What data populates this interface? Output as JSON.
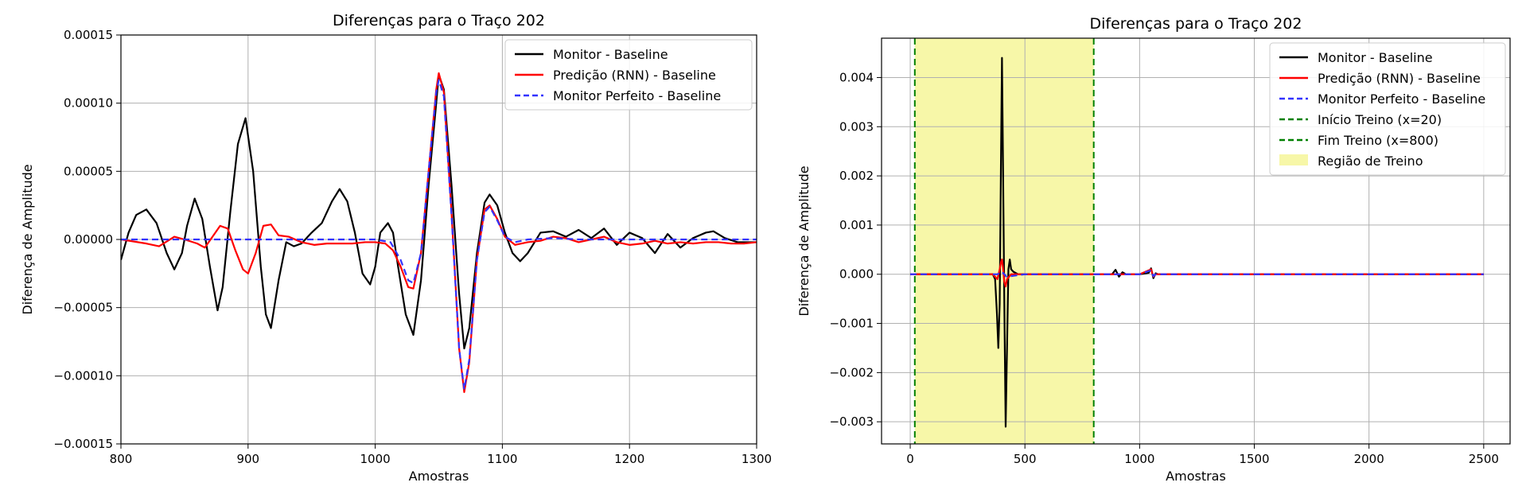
{
  "chart_data": [
    {
      "type": "line",
      "title": "Diferenças para o Traço 202",
      "xlabel": "Amostras",
      "ylabel": "Diferença de Amplitude",
      "xlim": [
        800,
        1300
      ],
      "ylim": [
        -0.00015,
        0.00015
      ],
      "xticks": [
        800,
        900,
        1000,
        1100,
        1200,
        1300
      ],
      "xtick_labels": [
        "800",
        "900",
        "1000",
        "1100",
        "1200",
        "1300"
      ],
      "yticks": [
        0.00015,
        0.0001,
        5e-05,
        0,
        -5e-05,
        -0.0001,
        -0.00015
      ],
      "ytick_labels": [
        "0.00015",
        "0.00010",
        "0.00005",
        "0.00000",
        "−0.00005",
        "−0.00010",
        "−0.00015"
      ],
      "grid": true,
      "legend_position": "top-right",
      "series": [
        {
          "name": "Monitor - Baseline",
          "color": "#000000",
          "style": "solid",
          "x": [
            800,
            806,
            812,
            820,
            828,
            836,
            842,
            848,
            852,
            858,
            864,
            870,
            876,
            880,
            886,
            892,
            898,
            904,
            910,
            914,
            918,
            924,
            930,
            936,
            942,
            950,
            958,
            966,
            972,
            978,
            984,
            990,
            996,
            1000,
            1004,
            1010,
            1014,
            1018,
            1024,
            1030,
            1036,
            1042,
            1048,
            1050,
            1054,
            1060,
            1066,
            1070,
            1074,
            1080,
            1086,
            1090,
            1096,
            1102,
            1108,
            1114,
            1120,
            1130,
            1140,
            1150,
            1160,
            1170,
            1180,
            1190,
            1200,
            1210,
            1220,
            1230,
            1240,
            1250,
            1260,
            1266,
            1275,
            1285,
            1300
          ],
          "y": [
            -1.5e-05,
            5e-06,
            1.8e-05,
            2.2e-05,
            1.2e-05,
            -1e-05,
            -2.2e-05,
            -1e-05,
            1e-05,
            3e-05,
            1.5e-05,
            -2e-05,
            -5.2e-05,
            -3.5e-05,
            2e-05,
            7e-05,
            8.9e-05,
            5e-05,
            -2e-05,
            -5.5e-05,
            -6.5e-05,
            -3e-05,
            -2e-06,
            -5e-06,
            -3e-06,
            5e-06,
            1.2e-05,
            2.8e-05,
            3.7e-05,
            2.8e-05,
            5e-06,
            -2.5e-05,
            -3.3e-05,
            -2e-05,
            5e-06,
            1.2e-05,
            5e-06,
            -2e-05,
            -5.5e-05,
            -7e-05,
            -3e-05,
            4e-05,
            0.0001,
            0.000121,
            0.00011,
            4e-05,
            -4e-05,
            -8e-05,
            -6.5e-05,
            -1e-05,
            2.7e-05,
            3.3e-05,
            2.5e-05,
            5e-06,
            -1e-05,
            -1.6e-05,
            -1e-05,
            5e-06,
            6e-06,
            2e-06,
            7e-06,
            1e-06,
            8e-06,
            -4e-06,
            5e-06,
            1e-06,
            -1e-05,
            4e-06,
            -6e-06,
            1e-06,
            5e-06,
            6e-06,
            1e-06,
            -2e-06,
            -2e-06
          ]
        },
        {
          "name": "Predição (RNN) - Baseline",
          "color": "#ff0000",
          "style": "solid",
          "x": [
            800,
            820,
            830,
            842,
            850,
            860,
            866,
            872,
            878,
            884,
            890,
            896,
            900,
            906,
            912,
            918,
            924,
            932,
            942,
            952,
            962,
            972,
            982,
            992,
            1000,
            1008,
            1014,
            1020,
            1026,
            1030,
            1036,
            1042,
            1048,
            1050,
            1054,
            1060,
            1066,
            1070,
            1074,
            1080,
            1086,
            1090,
            1096,
            1102,
            1110,
            1120,
            1130,
            1140,
            1150,
            1160,
            1170,
            1180,
            1190,
            1200,
            1210,
            1220,
            1230,
            1240,
            1250,
            1260,
            1270,
            1280,
            1290,
            1300
          ],
          "y": [
            0,
            -3e-06,
            -5e-06,
            2e-06,
            0,
            -3e-06,
            -6e-06,
            2e-06,
            1e-05,
            8e-06,
            -8e-06,
            -2.2e-05,
            -2.5e-05,
            -1e-05,
            1e-05,
            1.1e-05,
            3e-06,
            2e-06,
            -2e-06,
            -4e-06,
            -3e-06,
            -3e-06,
            -3e-06,
            -2e-06,
            -2e-06,
            -3e-06,
            -8e-06,
            -2e-05,
            -3.5e-05,
            -3.6e-05,
            -1e-05,
            5e-05,
            0.00011,
            0.000122,
            0.000108,
            2e-05,
            -8e-05,
            -0.000112,
            -9e-05,
            -1.5e-05,
            2.2e-05,
            2.5e-05,
            1.5e-05,
            2e-06,
            -4e-06,
            -2e-06,
            -1e-06,
            2e-06,
            1e-06,
            -2e-06,
            0,
            2e-06,
            -2e-06,
            -4e-06,
            -3e-06,
            -1e-06,
            -3e-06,
            -2e-06,
            -3e-06,
            -2e-06,
            -2e-06,
            -3e-06,
            -3e-06,
            -2e-06
          ]
        },
        {
          "name": "Monitor Perfeito - Baseline",
          "color": "#3333ff",
          "style": "dashed",
          "x": [
            800,
            900,
            1000,
            1012,
            1020,
            1026,
            1030,
            1036,
            1042,
            1048,
            1050,
            1054,
            1060,
            1066,
            1070,
            1074,
            1080,
            1086,
            1090,
            1096,
            1102,
            1110,
            1120,
            1140,
            1160,
            1200,
            1300
          ],
          "y": [
            0,
            0,
            0,
            -2e-06,
            -1.5e-05,
            -3e-05,
            -3.2e-05,
            -1e-05,
            5e-05,
            0.000108,
            0.000117,
            0.000105,
            1.8e-05,
            -8e-05,
            -0.00011,
            -8.8e-05,
            -1.5e-05,
            2e-05,
            2.4e-05,
            1.4e-05,
            2e-06,
            -2e-06,
            0,
            1e-06,
            0,
            0,
            0
          ]
        }
      ],
      "legend": [
        "Monitor - Baseline",
        "Predição (RNN) - Baseline",
        "Monitor Perfeito - Baseline"
      ]
    },
    {
      "type": "line",
      "title": "Diferenças para o Traço 202",
      "xlabel": "Amostras",
      "ylabel": "Diferença de Amplitude",
      "xlim": [
        -125,
        2615
      ],
      "ylim": [
        -0.00345,
        0.0048
      ],
      "xticks": [
        0,
        500,
        1000,
        1500,
        2000,
        2500
      ],
      "xtick_labels": [
        "0",
        "500",
        "1000",
        "1500",
        "2000",
        "2500"
      ],
      "yticks": [
        0.004,
        0.003,
        0.002,
        0.001,
        0,
        -0.001,
        -0.002,
        -0.003
      ],
      "ytick_labels": [
        "0.004",
        "0.003",
        "0.002",
        "0.001",
        "0.000",
        "−0.001",
        "−0.002",
        "−0.003"
      ],
      "grid": true,
      "legend_position": "top-right",
      "training_region": {
        "start": 20,
        "end": 800,
        "color": "#f7f7a8"
      },
      "series": [
        {
          "name": "Monitor - Baseline",
          "color": "#000000",
          "style": "solid",
          "x": [
            0,
            360,
            370,
            378,
            384,
            390,
            396,
            400,
            404,
            410,
            416,
            422,
            428,
            434,
            440,
            450,
            470,
            500,
            600,
            700,
            800,
            880,
            895,
            910,
            925,
            940,
            1000,
            1040,
            1050,
            1060,
            1070,
            1080,
            1100,
            1200,
            2500
          ],
          "y": [
            0,
            0,
            -0.0001,
            -0.0008,
            -0.0015,
            -0.0006,
            0.0025,
            0.0044,
            0.0025,
            -0.0005,
            -0.0031,
            -0.0015,
            0.0001,
            0.0003,
            0.0001,
            5e-05,
            0,
            0,
            0,
            0,
            0,
            0,
            9e-05,
            -5e-05,
            4e-05,
            0,
            0,
            3e-05,
            0.00012,
            -8e-05,
            2e-05,
            0,
            0,
            0,
            0
          ]
        },
        {
          "name": "Predição (RNN) - Baseline",
          "color": "#ff0000",
          "style": "solid",
          "x": [
            0,
            360,
            380,
            390,
            396,
            400,
            404,
            410,
            416,
            422,
            440,
            500,
            1000,
            1050,
            1060,
            1070,
            2500
          ],
          "y": [
            0,
            0,
            -0.0001,
            0.0001,
            0.00025,
            0.0003,
            0.00015,
            -0.00015,
            -0.00025,
            -0.0001,
            0,
            0,
            0,
            0.0001,
            -5e-05,
            0,
            0
          ]
        },
        {
          "name": "Monitor Perfeito - Baseline",
          "color": "#3333ff",
          "style": "dashed",
          "x": [
            0,
            380,
            400,
            420,
            500,
            1000,
            1050,
            1060,
            1070,
            2500
          ],
          "y": [
            0,
            0,
            5e-05,
            -5e-05,
            0,
            0,
            8e-05,
            -4e-05,
            0,
            0
          ]
        }
      ],
      "vlines": [
        {
          "name": "Início Treino (x=20)",
          "x": 20,
          "color": "#008000",
          "style": "dashed"
        },
        {
          "name": "Fim Treino (x=800)",
          "x": 800,
          "color": "#008000",
          "style": "dashed"
        }
      ],
      "legend": [
        "Monitor - Baseline",
        "Predição (RNN) - Baseline",
        "Monitor Perfeito - Baseline",
        "Início Treino (x=20)",
        "Fim Treino (x=800)",
        "Região de Treino"
      ]
    }
  ]
}
